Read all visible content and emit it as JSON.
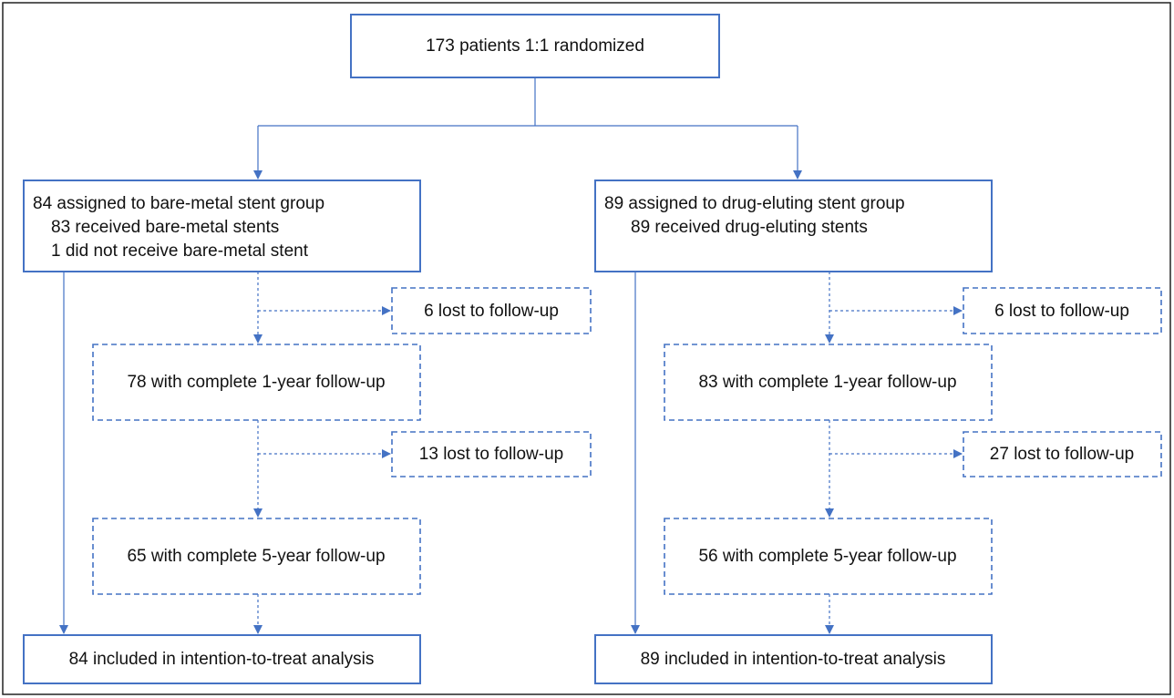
{
  "nodes": [
    {
      "label": "173 patients 1:1 randomized"
    },
    {
      "lines": [
        "84 assigned to bare-metal stent group",
        "83 received bare-metal stents",
        "1 did not receive bare-metal stent"
      ]
    },
    {
      "lines": [
        "89 assigned to drug-eluting stent group",
        "89 received drug-eluting stents"
      ]
    },
    {
      "label": "6 lost to follow-up"
    },
    {
      "label": "78 with complete 1-year follow-up"
    },
    {
      "label": "13 lost to follow-up"
    },
    {
      "label": "65 with complete 5-year follow-up"
    },
    {
      "label": "84 included in intention-to-treat analysis"
    },
    {
      "label": "6 lost to follow-up"
    },
    {
      "label": "83 with complete 1-year follow-up"
    },
    {
      "label": "27 lost to follow-up"
    },
    {
      "label": "56 with complete 5-year follow-up"
    },
    {
      "label": "89 included in intention-to-treat analysis"
    }
  ]
}
